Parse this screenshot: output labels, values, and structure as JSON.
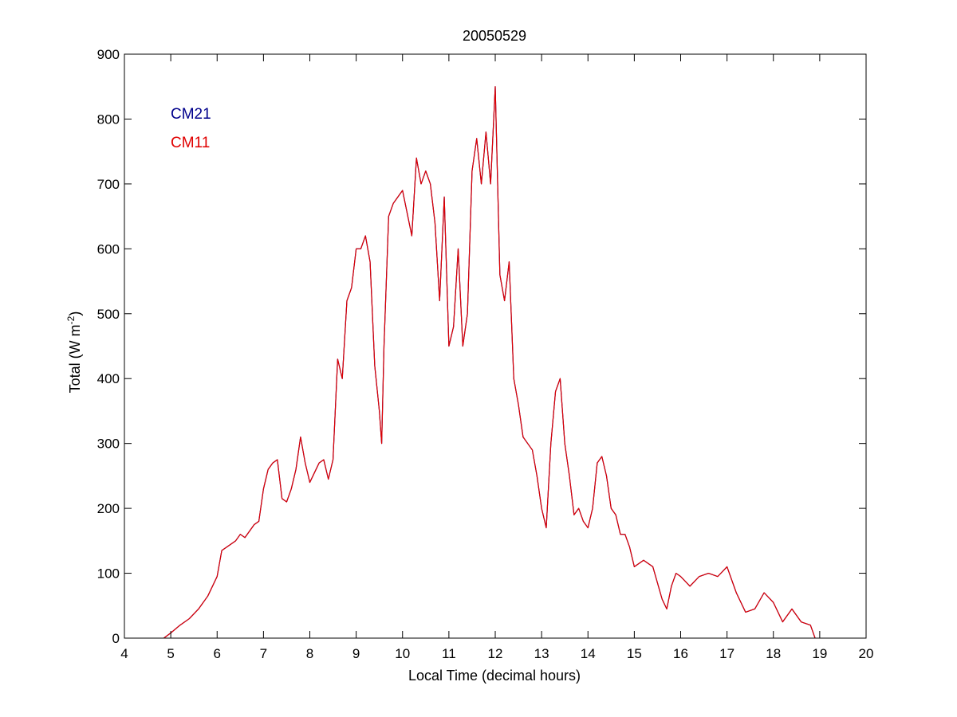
{
  "chart_data": {
    "type": "line",
    "title": "20050529",
    "xlabel": "Local Time (decimal hours)",
    "ylabel_main": "Total (W m",
    "ylabel_sup": "-2",
    "ylabel_close": ")",
    "xlim": [
      4,
      20
    ],
    "ylim": [
      0,
      900
    ],
    "xticks": [
      4,
      5,
      6,
      7,
      8,
      9,
      10,
      11,
      12,
      13,
      14,
      15,
      16,
      17,
      18,
      19,
      20
    ],
    "yticks": [
      0,
      100,
      200,
      300,
      400,
      500,
      600,
      700,
      800,
      900
    ],
    "grid": false,
    "legend_position": "top-left",
    "series": [
      {
        "name": "CM21",
        "color": "#00008b",
        "x": [
          4.85,
          5.0,
          5.2,
          5.4,
          5.6,
          5.8,
          6.0,
          6.1,
          6.2,
          6.4,
          6.5,
          6.6,
          6.8,
          6.9,
          7.0,
          7.1,
          7.2,
          7.3,
          7.4,
          7.5,
          7.6,
          7.7,
          7.8,
          7.9,
          8.0,
          8.1,
          8.2,
          8.3,
          8.4,
          8.5,
          8.6,
          8.7,
          8.8,
          8.9,
          9.0,
          9.1,
          9.2,
          9.3,
          9.4,
          9.5,
          9.55,
          9.6,
          9.7,
          9.8,
          10.0,
          10.2,
          10.3,
          10.4,
          10.5,
          10.6,
          10.7,
          10.8,
          10.9,
          11.0,
          11.1,
          11.2,
          11.3,
          11.4,
          11.5,
          11.6,
          11.7,
          11.8,
          11.9,
          12.0,
          12.1,
          12.2,
          12.3,
          12.4,
          12.5,
          12.6,
          12.7,
          12.8,
          12.9,
          13.0,
          13.1,
          13.2,
          13.3,
          13.4,
          13.5,
          13.6,
          13.7,
          13.8,
          13.9,
          14.0,
          14.1,
          14.2,
          14.3,
          14.4,
          14.5,
          14.6,
          14.7,
          14.8,
          14.9,
          15.0,
          15.2,
          15.4,
          15.6,
          15.7,
          15.8,
          15.9,
          16.0,
          16.2,
          16.4,
          16.6,
          16.8,
          17.0,
          17.2,
          17.4,
          17.6,
          17.8,
          18.0,
          18.2,
          18.4,
          18.6,
          18.8,
          18.9
        ],
        "y": [
          0,
          8,
          20,
          30,
          45,
          65,
          95,
          135,
          140,
          150,
          160,
          155,
          175,
          180,
          230,
          260,
          270,
          275,
          215,
          210,
          230,
          260,
          310,
          270,
          240,
          255,
          270,
          275,
          245,
          275,
          430,
          400,
          520,
          540,
          600,
          600,
          620,
          580,
          420,
          350,
          300,
          450,
          650,
          670,
          690,
          620,
          740,
          700,
          720,
          700,
          640,
          520,
          680,
          450,
          480,
          600,
          450,
          500,
          720,
          770,
          700,
          780,
          700,
          850,
          560,
          520,
          580,
          400,
          360,
          310,
          300,
          290,
          250,
          200,
          170,
          300,
          380,
          400,
          300,
          250,
          190,
          200,
          180,
          170,
          200,
          270,
          280,
          250,
          200,
          190,
          160,
          160,
          140,
          110,
          120,
          110,
          60,
          45,
          80,
          100,
          95,
          80,
          95,
          100,
          95,
          110,
          70,
          40,
          45,
          70,
          55,
          25,
          45,
          25,
          20,
          0
        ]
      },
      {
        "name": "CM11",
        "color": "#e00000",
        "x": [
          4.85,
          5.0,
          5.2,
          5.4,
          5.6,
          5.8,
          6.0,
          6.1,
          6.2,
          6.4,
          6.5,
          6.6,
          6.8,
          6.9,
          7.0,
          7.1,
          7.2,
          7.3,
          7.4,
          7.5,
          7.6,
          7.7,
          7.8,
          7.9,
          8.0,
          8.1,
          8.2,
          8.3,
          8.4,
          8.5,
          8.6,
          8.7,
          8.8,
          8.9,
          9.0,
          9.1,
          9.2,
          9.3,
          9.4,
          9.5,
          9.55,
          9.6,
          9.7,
          9.8,
          10.0,
          10.2,
          10.3,
          10.4,
          10.5,
          10.6,
          10.7,
          10.8,
          10.9,
          11.0,
          11.1,
          11.2,
          11.3,
          11.4,
          11.5,
          11.6,
          11.7,
          11.8,
          11.9,
          12.0,
          12.1,
          12.2,
          12.3,
          12.4,
          12.5,
          12.6,
          12.7,
          12.8,
          12.9,
          13.0,
          13.1,
          13.2,
          13.3,
          13.4,
          13.5,
          13.6,
          13.7,
          13.8,
          13.9,
          14.0,
          14.1,
          14.2,
          14.3,
          14.4,
          14.5,
          14.6,
          14.7,
          14.8,
          14.9,
          15.0,
          15.2,
          15.4,
          15.6,
          15.7,
          15.8,
          15.9,
          16.0,
          16.2,
          16.4,
          16.6,
          16.8,
          17.0,
          17.2,
          17.4,
          17.6,
          17.8,
          18.0,
          18.2,
          18.4,
          18.6,
          18.8,
          18.9
        ],
        "y": [
          0,
          8,
          20,
          30,
          45,
          65,
          95,
          135,
          140,
          150,
          160,
          155,
          175,
          180,
          230,
          260,
          270,
          275,
          215,
          210,
          230,
          260,
          310,
          270,
          240,
          255,
          270,
          275,
          245,
          275,
          430,
          400,
          520,
          540,
          600,
          600,
          620,
          580,
          420,
          350,
          300,
          450,
          650,
          670,
          690,
          620,
          740,
          700,
          720,
          700,
          640,
          520,
          680,
          450,
          480,
          600,
          450,
          500,
          720,
          770,
          700,
          780,
          700,
          850,
          560,
          520,
          580,
          400,
          360,
          310,
          300,
          290,
          250,
          200,
          170,
          300,
          380,
          400,
          300,
          250,
          190,
          200,
          180,
          170,
          200,
          270,
          280,
          250,
          200,
          190,
          160,
          160,
          140,
          110,
          120,
          110,
          60,
          45,
          80,
          100,
          95,
          80,
          95,
          100,
          95,
          110,
          70,
          40,
          45,
          70,
          55,
          25,
          45,
          25,
          20,
          0
        ]
      }
    ]
  }
}
